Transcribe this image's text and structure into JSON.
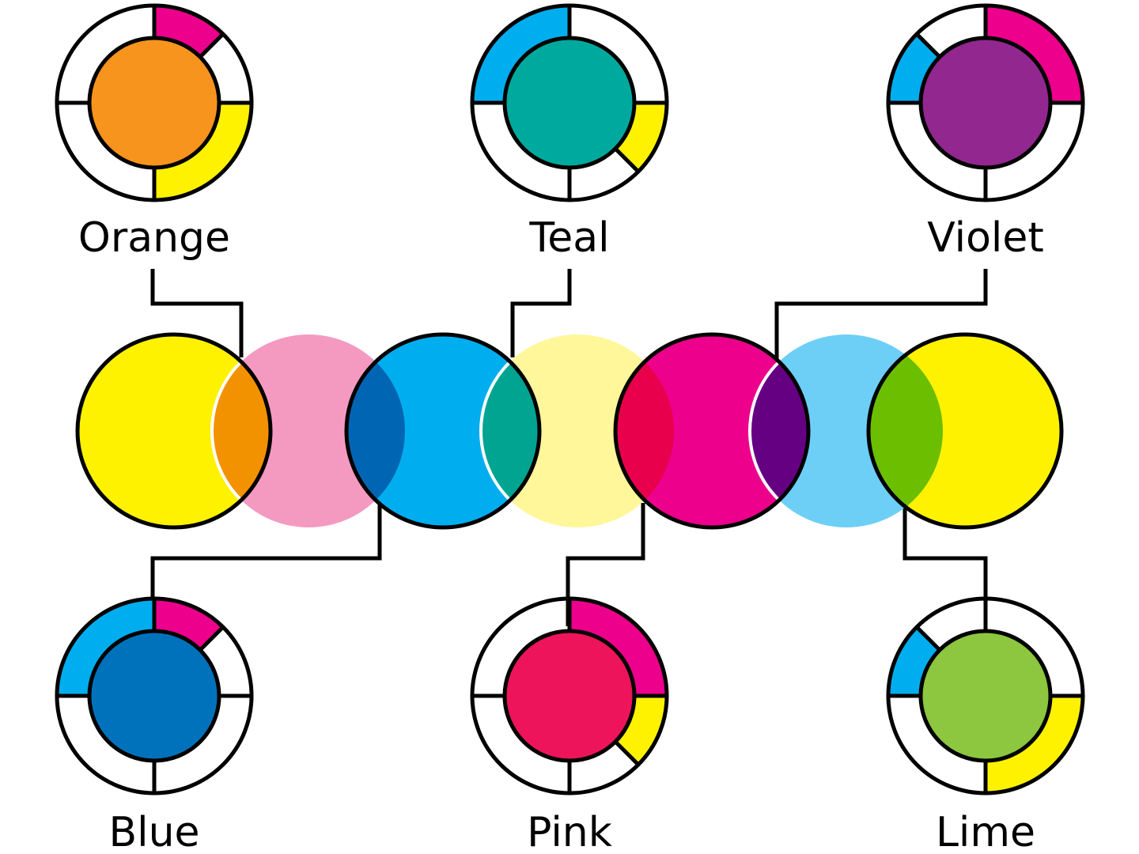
{
  "palette": {
    "yellow": "#FFF200",
    "pink_tint": "#F49AC1",
    "cyan": "#00AEEF",
    "yellow_tint": "#FFF799",
    "magenta": "#EC008C",
    "cyan_tint": "#6DCFF6",
    "outline": "#000000",
    "background": "#FFFFFF"
  },
  "mixes": [
    {
      "label": "Orange",
      "color": "#F7941D",
      "overlap_color": "#F39200",
      "wedges": [
        "magenta",
        "none",
        "yellow",
        "none"
      ]
    },
    {
      "label": "Teal",
      "color": "#00A99D",
      "overlap_color": "#00A490",
      "wedges": [
        "none",
        "yellow",
        "none",
        "cyan"
      ]
    },
    {
      "label": "Violet",
      "color": "#92278F",
      "overlap_color": "#660082",
      "wedges": [
        "magenta",
        "none",
        "none",
        "cyan"
      ]
    },
    {
      "label": "Blue",
      "color": "#0072BC",
      "overlap_color": "#0066B3",
      "wedges": [
        "magenta",
        "none",
        "none",
        "cyan"
      ]
    },
    {
      "label": "Pink",
      "color": "#ED145B",
      "overlap_color": "#E8004C",
      "wedges": [
        "magenta",
        "yellow",
        "none",
        "none"
      ]
    },
    {
      "label": "Lime",
      "color": "#8DC63F",
      "overlap_color": "#6CBE00",
      "wedges": [
        "none",
        "yellow",
        "none",
        "cyan"
      ]
    }
  ],
  "chain": [
    "yellow",
    "pink_tint",
    "cyan",
    "yellow_tint",
    "magenta",
    "cyan_tint",
    "yellow"
  ]
}
